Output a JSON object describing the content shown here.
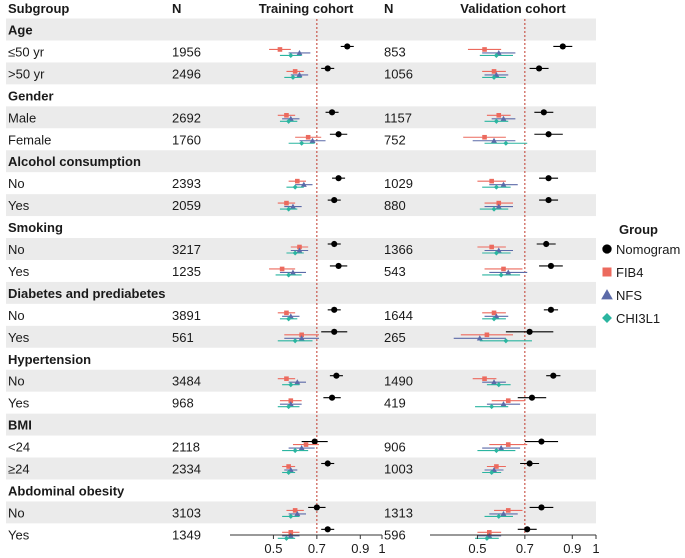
{
  "chart_data": {
    "type": "forest",
    "header": {
      "subgroup": "Subgroup",
      "n_train": "N",
      "train_title": "Training cohort",
      "n_val": "N",
      "val_title": "Validation cohort"
    },
    "x_ticks": [
      "0.5",
      "0.7",
      "0.9",
      "1"
    ],
    "x_range": [
      0.3,
      1.0
    ],
    "ref_line": 0.7,
    "legend": {
      "title": "Group",
      "items": [
        {
          "name": "Nomogram",
          "color": "#000000",
          "shape": "circle"
        },
        {
          "name": "FIB4",
          "color": "#ec6a5e",
          "shape": "square"
        },
        {
          "name": "NFS",
          "color": "#5c6aa8",
          "shape": "triangle"
        },
        {
          "name": "CHI3L1",
          "color": "#2bb5a0",
          "shape": "diamond"
        }
      ]
    },
    "groups": [
      {
        "title": "Age",
        "rows": [
          {
            "label": "≤50 yr",
            "n_train": "1956",
            "n_val": "853",
            "train": [
              [
                0.84,
                0.81,
                0.87
              ],
              [
                0.53,
                0.48,
                0.58
              ],
              [
                0.62,
                0.57,
                0.67
              ],
              [
                0.58,
                0.53,
                0.63
              ]
            ],
            "val": [
              [
                0.86,
                0.82,
                0.9
              ],
              [
                0.53,
                0.46,
                0.6
              ],
              [
                0.59,
                0.52,
                0.66
              ],
              [
                0.58,
                0.51,
                0.65
              ]
            ]
          },
          {
            "label": ">50 yr",
            "n_train": "2496",
            "n_val": "1056",
            "train": [
              [
                0.75,
                0.72,
                0.78
              ],
              [
                0.6,
                0.56,
                0.64
              ],
              [
                0.62,
                0.58,
                0.66
              ],
              [
                0.59,
                0.55,
                0.63
              ]
            ],
            "val": [
              [
                0.76,
                0.72,
                0.8
              ],
              [
                0.57,
                0.52,
                0.62
              ],
              [
                0.58,
                0.53,
                0.63
              ],
              [
                0.57,
                0.52,
                0.62
              ]
            ]
          }
        ]
      },
      {
        "title": "Gender",
        "rows": [
          {
            "label": "Male",
            "n_train": "2692",
            "n_val": "1157",
            "train": [
              [
                0.77,
                0.74,
                0.8
              ],
              [
                0.56,
                0.52,
                0.6
              ],
              [
                0.58,
                0.54,
                0.62
              ],
              [
                0.57,
                0.53,
                0.61
              ]
            ],
            "val": [
              [
                0.78,
                0.74,
                0.82
              ],
              [
                0.59,
                0.54,
                0.64
              ],
              [
                0.61,
                0.56,
                0.66
              ],
              [
                0.58,
                0.53,
                0.63
              ]
            ]
          },
          {
            "label": "Female",
            "n_train": "1760",
            "n_val": "752",
            "train": [
              [
                0.8,
                0.76,
                0.84
              ],
              [
                0.66,
                0.6,
                0.72
              ],
              [
                0.68,
                0.62,
                0.74
              ],
              [
                0.63,
                0.57,
                0.69
              ]
            ],
            "val": [
              [
                0.8,
                0.74,
                0.86
              ],
              [
                0.53,
                0.44,
                0.62
              ],
              [
                0.57,
                0.48,
                0.66
              ],
              [
                0.62,
                0.53,
                0.71
              ]
            ]
          }
        ]
      },
      {
        "title": "Alcohol consumption",
        "rows": [
          {
            "label": "No",
            "n_train": "2393",
            "n_val": "1029",
            "train": [
              [
                0.8,
                0.77,
                0.83
              ],
              [
                0.61,
                0.57,
                0.65
              ],
              [
                0.64,
                0.6,
                0.68
              ],
              [
                0.6,
                0.56,
                0.64
              ]
            ],
            "val": [
              [
                0.8,
                0.76,
                0.84
              ],
              [
                0.56,
                0.5,
                0.62
              ],
              [
                0.61,
                0.55,
                0.67
              ],
              [
                0.58,
                0.52,
                0.64
              ]
            ]
          },
          {
            "label": "Yes",
            "n_train": "2059",
            "n_val": "880",
            "train": [
              [
                0.78,
                0.75,
                0.81
              ],
              [
                0.56,
                0.52,
                0.6
              ],
              [
                0.59,
                0.55,
                0.63
              ],
              [
                0.57,
                0.53,
                0.61
              ]
            ],
            "val": [
              [
                0.8,
                0.76,
                0.84
              ],
              [
                0.59,
                0.53,
                0.65
              ],
              [
                0.59,
                0.53,
                0.65
              ],
              [
                0.57,
                0.51,
                0.63
              ]
            ]
          }
        ]
      },
      {
        "title": "Smoking",
        "rows": [
          {
            "label": "No",
            "n_train": "3217",
            "n_val": "1366",
            "train": [
              [
                0.78,
                0.75,
                0.81
              ],
              [
                0.62,
                0.58,
                0.66
              ],
              [
                0.62,
                0.58,
                0.66
              ],
              [
                0.6,
                0.56,
                0.64
              ]
            ],
            "val": [
              [
                0.79,
                0.75,
                0.83
              ],
              [
                0.56,
                0.5,
                0.62
              ],
              [
                0.59,
                0.53,
                0.65
              ],
              [
                0.58,
                0.52,
                0.64
              ]
            ]
          },
          {
            "label": "Yes",
            "n_train": "1235",
            "n_val": "543",
            "train": [
              [
                0.8,
                0.76,
                0.84
              ],
              [
                0.54,
                0.48,
                0.6
              ],
              [
                0.59,
                0.53,
                0.65
              ],
              [
                0.57,
                0.51,
                0.63
              ]
            ],
            "val": [
              [
                0.81,
                0.76,
                0.86
              ],
              [
                0.61,
                0.53,
                0.69
              ],
              [
                0.63,
                0.55,
                0.71
              ],
              [
                0.6,
                0.52,
                0.68
              ]
            ]
          }
        ]
      },
      {
        "title": "Diabetes and prediabetes",
        "rows": [
          {
            "label": "No",
            "n_train": "3891",
            "n_val": "1644",
            "train": [
              [
                0.78,
                0.75,
                0.81
              ],
              [
                0.56,
                0.52,
                0.6
              ],
              [
                0.58,
                0.54,
                0.62
              ],
              [
                0.57,
                0.53,
                0.61
              ]
            ],
            "val": [
              [
                0.81,
                0.78,
                0.84
              ],
              [
                0.57,
                0.52,
                0.62
              ],
              [
                0.58,
                0.53,
                0.63
              ],
              [
                0.57,
                0.52,
                0.62
              ]
            ]
          },
          {
            "label": "Yes",
            "n_train": "561",
            "n_val": "265",
            "train": [
              [
                0.78,
                0.72,
                0.84
              ],
              [
                0.63,
                0.55,
                0.71
              ],
              [
                0.63,
                0.55,
                0.71
              ],
              [
                0.6,
                0.52,
                0.68
              ]
            ],
            "val": [
              [
                0.72,
                0.62,
                0.82
              ],
              [
                0.54,
                0.43,
                0.65
              ],
              [
                0.51,
                0.4,
                0.62
              ],
              [
                0.62,
                0.51,
                0.73
              ]
            ]
          }
        ]
      },
      {
        "title": "Hypertension",
        "rows": [
          {
            "label": "No",
            "n_train": "3484",
            "n_val": "1490",
            "train": [
              [
                0.79,
                0.76,
                0.82
              ],
              [
                0.56,
                0.52,
                0.6
              ],
              [
                0.61,
                0.57,
                0.65
              ],
              [
                0.58,
                0.54,
                0.62
              ]
            ],
            "val": [
              [
                0.82,
                0.79,
                0.85
              ],
              [
                0.53,
                0.48,
                0.58
              ],
              [
                0.57,
                0.52,
                0.62
              ],
              [
                0.59,
                0.54,
                0.64
              ]
            ]
          },
          {
            "label": "Yes",
            "n_train": "968",
            "n_val": "419",
            "train": [
              [
                0.77,
                0.73,
                0.81
              ],
              [
                0.58,
                0.53,
                0.63
              ],
              [
                0.58,
                0.53,
                0.63
              ],
              [
                0.57,
                0.52,
                0.62
              ]
            ],
            "val": [
              [
                0.73,
                0.67,
                0.79
              ],
              [
                0.63,
                0.56,
                0.7
              ],
              [
                0.61,
                0.54,
                0.68
              ],
              [
                0.56,
                0.49,
                0.63
              ]
            ]
          }
        ]
      },
      {
        "title": "BMI",
        "rows": [
          {
            "label": "<24",
            "n_train": "2118",
            "n_val": "906",
            "train": [
              [
                0.69,
                0.63,
                0.75
              ],
              [
                0.65,
                0.59,
                0.71
              ],
              [
                0.63,
                0.57,
                0.69
              ],
              [
                0.6,
                0.54,
                0.66
              ]
            ],
            "val": [
              [
                0.77,
                0.7,
                0.84
              ],
              [
                0.63,
                0.55,
                0.71
              ],
              [
                0.6,
                0.52,
                0.68
              ],
              [
                0.58,
                0.5,
                0.66
              ]
            ]
          },
          {
            "label": "≥24",
            "n_train": "2334",
            "n_val": "1003",
            "train": [
              [
                0.75,
                0.72,
                0.78
              ],
              [
                0.57,
                0.54,
                0.6
              ],
              [
                0.58,
                0.55,
                0.61
              ],
              [
                0.57,
                0.54,
                0.6
              ]
            ],
            "val": [
              [
                0.72,
                0.68,
                0.76
              ],
              [
                0.58,
                0.54,
                0.62
              ],
              [
                0.57,
                0.53,
                0.61
              ],
              [
                0.56,
                0.52,
                0.6
              ]
            ]
          }
        ]
      },
      {
        "title": "Abdominal obesity",
        "rows": [
          {
            "label": "No",
            "n_train": "3103",
            "n_val": "1313",
            "train": [
              [
                0.7,
                0.66,
                0.74
              ],
              [
                0.6,
                0.56,
                0.64
              ],
              [
                0.61,
                0.57,
                0.65
              ],
              [
                0.58,
                0.54,
                0.62
              ]
            ],
            "val": [
              [
                0.77,
                0.72,
                0.82
              ],
              [
                0.63,
                0.57,
                0.69
              ],
              [
                0.61,
                0.55,
                0.67
              ],
              [
                0.59,
                0.53,
                0.65
              ]
            ]
          },
          {
            "label": "Yes",
            "n_train": "1349",
            "n_val": "596",
            "train": [
              [
                0.75,
                0.72,
                0.78
              ],
              [
                0.58,
                0.54,
                0.62
              ],
              [
                0.58,
                0.54,
                0.62
              ],
              [
                0.56,
                0.52,
                0.6
              ]
            ],
            "val": [
              [
                0.71,
                0.67,
                0.75
              ],
              [
                0.55,
                0.5,
                0.6
              ],
              [
                0.55,
                0.5,
                0.6
              ],
              [
                0.54,
                0.49,
                0.59
              ]
            ]
          }
        ]
      }
    ]
  }
}
